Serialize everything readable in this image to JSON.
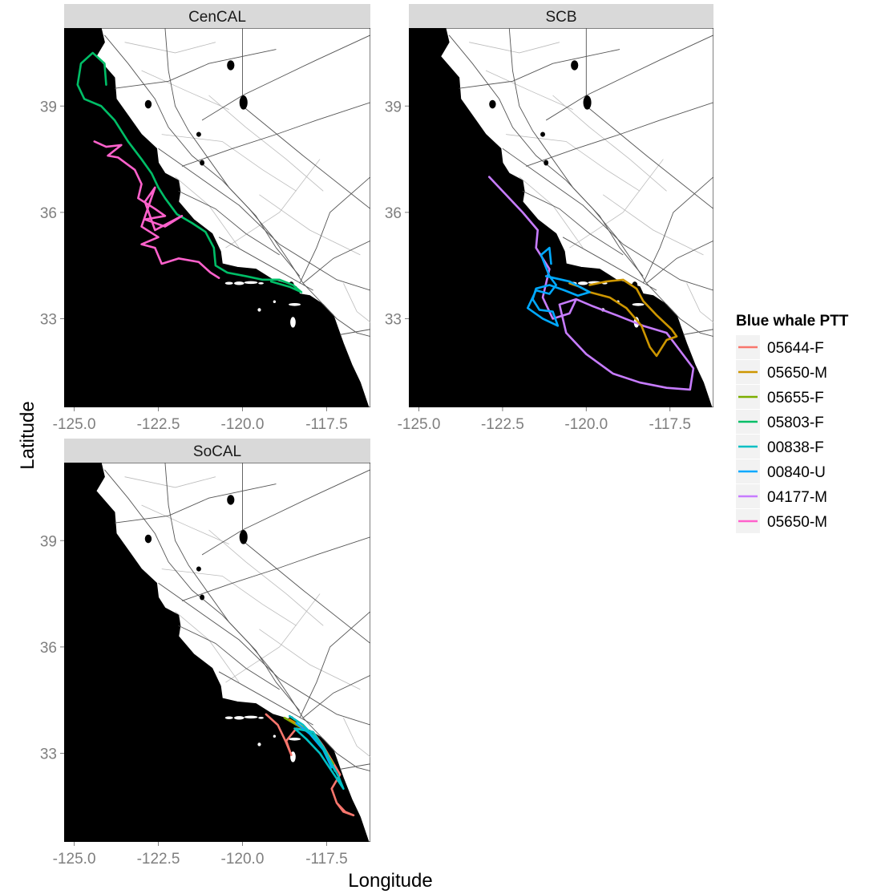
{
  "xlabel": "Longitude",
  "ylabel": "Latitude",
  "x_ticks": [
    "-125.0",
    "-122.5",
    "-120.0",
    "-117.5"
  ],
  "y_ticks": [
    "33",
    "36",
    "39"
  ],
  "legend": {
    "title": "Blue whale PTT",
    "items": [
      {
        "label": "05644-F",
        "color": "#F8766D"
      },
      {
        "label": "05650-M",
        "color": "#CD9600"
      },
      {
        "label": "05655-F",
        "color": "#7CAE00"
      },
      {
        "label": "05803-F",
        "color": "#00BE67"
      },
      {
        "label": "00838-F",
        "color": "#00BFC4"
      },
      {
        "label": "00840-U",
        "color": "#00A9FF"
      },
      {
        "label": "04177-M",
        "color": "#C77CFF"
      },
      {
        "label": "05650-M",
        "color": "#FF61CC"
      }
    ]
  },
  "map": {
    "xlim": [
      -125.3,
      -116.2
    ],
    "ylim": [
      30.5,
      41.2
    ],
    "land_color": "#ffffff",
    "ocean_color": "#000000",
    "coastline": [
      [
        -124.2,
        41.2
      ],
      [
        -124.1,
        40.8
      ],
      [
        -124.35,
        40.4
      ],
      [
        -123.8,
        39.8
      ],
      [
        -123.75,
        39.2
      ],
      [
        -123.3,
        38.6
      ],
      [
        -123.0,
        38.2
      ],
      [
        -122.55,
        37.8
      ],
      [
        -122.5,
        37.4
      ],
      [
        -122.3,
        37.1
      ],
      [
        -121.9,
        36.9
      ],
      [
        -121.85,
        36.6
      ],
      [
        -121.9,
        36.3
      ],
      [
        -121.45,
        35.8
      ],
      [
        -120.9,
        35.4
      ],
      [
        -120.65,
        34.9
      ],
      [
        -120.6,
        34.55
      ],
      [
        -120.15,
        34.45
      ],
      [
        -119.6,
        34.4
      ],
      [
        -119.1,
        34.1
      ],
      [
        -118.75,
        34.0
      ],
      [
        -118.4,
        33.9
      ],
      [
        -118.3,
        33.7
      ],
      [
        -118.0,
        33.65
      ],
      [
        -117.6,
        33.4
      ],
      [
        -117.3,
        33.1
      ],
      [
        -117.15,
        32.7
      ],
      [
        -117.0,
        32.3
      ],
      [
        -116.75,
        31.7
      ],
      [
        -116.5,
        31.2
      ],
      [
        -116.25,
        30.5
      ]
    ],
    "islands": [
      [
        -120.4,
        34.0,
        0.12,
        0.04
      ],
      [
        -120.1,
        34.0,
        0.15,
        0.05
      ],
      [
        -119.75,
        34.02,
        0.2,
        0.04
      ],
      [
        -119.45,
        34.0,
        0.08,
        0.03
      ],
      [
        -118.45,
        33.4,
        0.18,
        0.04
      ],
      [
        -118.5,
        32.9,
        0.08,
        0.15
      ],
      [
        -119.5,
        33.25,
        0.05,
        0.05
      ],
      [
        -119.05,
        33.48,
        0.04,
        0.04
      ]
    ],
    "lakes": [
      [
        -118.55,
        33.95,
        0.08,
        0.1
      ],
      [
        -115.85,
        33.3,
        0.18,
        0.2
      ],
      [
        -119.97,
        39.1,
        0.12,
        0.2
      ],
      [
        -120.35,
        40.15,
        0.11,
        0.14
      ],
      [
        -122.8,
        39.05,
        0.1,
        0.12
      ],
      [
        -121.3,
        38.2,
        0.07,
        0.07
      ],
      [
        -121.2,
        37.4,
        0.07,
        0.08
      ]
    ]
  },
  "chart_data": {
    "type": "map-tracks",
    "xlabel": "Longitude",
    "ylabel": "Latitude",
    "xlim": [
      -125.3,
      -116.2
    ],
    "ylim": [
      30.5,
      41.2
    ],
    "panels": [
      {
        "title": "CenCAL",
        "series": [
          {
            "name": "05803-F",
            "color": "#00BE67",
            "points": [
              [
                -124.05,
                39.6
              ],
              [
                -124.1,
                40.2
              ],
              [
                -124.45,
                40.5
              ],
              [
                -124.8,
                40.2
              ],
              [
                -124.9,
                39.6
              ],
              [
                -124.7,
                39.2
              ],
              [
                -124.2,
                39.0
              ],
              [
                -123.8,
                38.6
              ],
              [
                -123.4,
                38.0
              ],
              [
                -123.0,
                37.5
              ],
              [
                -122.7,
                37.1
              ],
              [
                -122.5,
                36.7
              ],
              [
                -122.3,
                36.4
              ],
              [
                -121.95,
                35.95
              ],
              [
                -121.5,
                35.7
              ],
              [
                -121.1,
                35.45
              ],
              [
                -120.85,
                35.0
              ],
              [
                -120.8,
                34.5
              ],
              [
                -120.45,
                34.3
              ],
              [
                -119.9,
                34.2
              ],
              [
                -119.4,
                34.1
              ],
              [
                -118.9,
                34.1
              ],
              [
                -118.5,
                33.95
              ],
              [
                -118.25,
                33.75
              ],
              [
                -118.6,
                33.9
              ],
              [
                -119.15,
                34.05
              ]
            ]
          },
          {
            "name": "05650-M",
            "color": "#FF61CC",
            "points": [
              [
                -124.4,
                38.0
              ],
              [
                -124.05,
                37.85
              ],
              [
                -123.6,
                37.9
              ],
              [
                -124.0,
                37.6
              ],
              [
                -123.7,
                37.55
              ],
              [
                -123.2,
                37.2
              ],
              [
                -123.0,
                36.8
              ],
              [
                -123.1,
                36.4
              ],
              [
                -122.6,
                36.1
              ],
              [
                -122.3,
                35.9
              ],
              [
                -122.9,
                35.8
              ],
              [
                -122.3,
                35.6
              ],
              [
                -121.8,
                35.9
              ],
              [
                -122.6,
                35.5
              ],
              [
                -122.9,
                36.3
              ],
              [
                -122.6,
                36.7
              ],
              [
                -123.0,
                35.6
              ],
              [
                -122.5,
                35.3
              ],
              [
                -123.0,
                35.1
              ],
              [
                -122.6,
                35.0
              ],
              [
                -122.4,
                34.55
              ],
              [
                -121.9,
                34.7
              ],
              [
                -121.3,
                34.6
              ],
              [
                -120.95,
                34.3
              ],
              [
                -120.7,
                34.15
              ]
            ]
          }
        ]
      },
      {
        "title": "SCB",
        "series": [
          {
            "name": "04177-M",
            "color": "#C77CFF",
            "points": [
              [
                -122.9,
                37.0
              ],
              [
                -122.4,
                36.5
              ],
              [
                -121.9,
                36.0
              ],
              [
                -121.45,
                35.5
              ],
              [
                -121.5,
                35.0
              ],
              [
                -121.1,
                34.4
              ],
              [
                -121.3,
                33.6
              ],
              [
                -121.0,
                33.0
              ],
              [
                -120.5,
                33.15
              ],
              [
                -120.3,
                33.55
              ],
              [
                -120.8,
                33.4
              ],
              [
                -120.6,
                32.6
              ],
              [
                -120.0,
                32.0
              ],
              [
                -119.2,
                31.45
              ],
              [
                -118.4,
                31.2
              ],
              [
                -117.6,
                31.05
              ],
              [
                -116.9,
                31.0
              ],
              [
                -116.8,
                31.6
              ],
              [
                -117.2,
                32.1
              ],
              [
                -117.6,
                32.6
              ],
              [
                -118.3,
                32.8
              ],
              [
                -119.1,
                33.1
              ],
              [
                -119.8,
                33.35
              ],
              [
                -120.3,
                33.55
              ]
            ]
          },
          {
            "name": "05650-M",
            "color": "#CD9600",
            "points": [
              [
                -119.9,
                33.95
              ],
              [
                -119.4,
                34.05
              ],
              [
                -118.9,
                34.1
              ],
              [
                -118.5,
                33.85
              ],
              [
                -118.3,
                33.5
              ],
              [
                -117.9,
                33.1
              ],
              [
                -117.45,
                32.7
              ],
              [
                -117.3,
                32.5
              ],
              [
                -117.6,
                32.4
              ],
              [
                -117.9,
                31.95
              ],
              [
                -118.1,
                32.2
              ],
              [
                -118.35,
                32.8
              ],
              [
                -118.8,
                33.3
              ],
              [
                -119.3,
                33.6
              ],
              [
                -119.9,
                33.75
              ],
              [
                -120.2,
                33.9
              ],
              [
                -120.5,
                34.0
              ]
            ]
          },
          {
            "name": "00840-U",
            "color": "#00A9FF",
            "points": [
              [
                -121.05,
                34.55
              ],
              [
                -121.1,
                35.0
              ],
              [
                -121.35,
                34.8
              ],
              [
                -121.1,
                34.2
              ],
              [
                -120.9,
                33.95
              ],
              [
                -121.1,
                33.7
              ],
              [
                -121.5,
                33.8
              ],
              [
                -121.75,
                33.3
              ],
              [
                -121.3,
                33.0
              ],
              [
                -120.85,
                32.8
              ],
              [
                -121.0,
                33.2
              ],
              [
                -121.4,
                33.25
              ],
              [
                -121.6,
                33.55
              ],
              [
                -121.5,
                33.85
              ],
              [
                -121.1,
                33.95
              ],
              [
                -120.65,
                33.8
              ],
              [
                -120.25,
                33.65
              ],
              [
                -119.9,
                33.75
              ],
              [
                -120.5,
                34.05
              ],
              [
                -121.2,
                34.2
              ]
            ]
          }
        ]
      },
      {
        "title": "SoCAL",
        "series": [
          {
            "name": "05644-F",
            "color": "#F8766D",
            "points": [
              [
                -119.3,
                34.1
              ],
              [
                -118.95,
                33.8
              ],
              [
                -118.7,
                33.3
              ],
              [
                -118.55,
                32.95
              ],
              [
                -118.7,
                33.35
              ],
              [
                -118.4,
                33.7
              ],
              [
                -117.9,
                33.6
              ],
              [
                -117.6,
                33.2
              ],
              [
                -117.35,
                32.8
              ],
              [
                -117.1,
                32.4
              ],
              [
                -117.35,
                32.0
              ],
              [
                -117.2,
                31.6
              ],
              [
                -117.0,
                31.35
              ],
              [
                -116.7,
                31.25
              ],
              [
                -116.95,
                31.35
              ],
              [
                -117.2,
                31.6
              ]
            ]
          },
          {
            "name": "05655-F",
            "color": "#7CAE00",
            "points": [
              [
                -118.75,
                34.0
              ],
              [
                -118.3,
                33.75
              ],
              [
                -117.9,
                33.5
              ],
              [
                -117.55,
                33.05
              ],
              [
                -117.3,
                32.7
              ]
            ]
          },
          {
            "name": "05650-M",
            "color": "#CD9600",
            "points": [
              [
                -118.6,
                33.95
              ],
              [
                -118.15,
                33.7
              ],
              [
                -117.7,
                33.3
              ],
              [
                -117.45,
                32.95
              ]
            ]
          },
          {
            "name": "00840-U",
            "color": "#00A9FF",
            "points": [
              [
                -118.4,
                33.85
              ],
              [
                -118.0,
                33.55
              ],
              [
                -117.6,
                33.1
              ],
              [
                -117.35,
                32.6
              ]
            ]
          },
          {
            "name": "00838-F",
            "color": "#00BFC4",
            "points": [
              [
                -118.6,
                34.05
              ],
              [
                -118.2,
                33.8
              ],
              [
                -117.95,
                33.55
              ],
              [
                -117.65,
                33.2
              ],
              [
                -117.4,
                32.8
              ],
              [
                -117.15,
                32.35
              ],
              [
                -117.0,
                32.0
              ],
              [
                -117.35,
                32.5
              ],
              [
                -117.7,
                33.0
              ],
              [
                -118.1,
                33.4
              ],
              [
                -118.45,
                33.7
              ],
              [
                -117.9,
                33.6
              ],
              [
                -117.55,
                33.1
              ],
              [
                -117.25,
                32.5
              ]
            ]
          }
        ]
      }
    ]
  }
}
